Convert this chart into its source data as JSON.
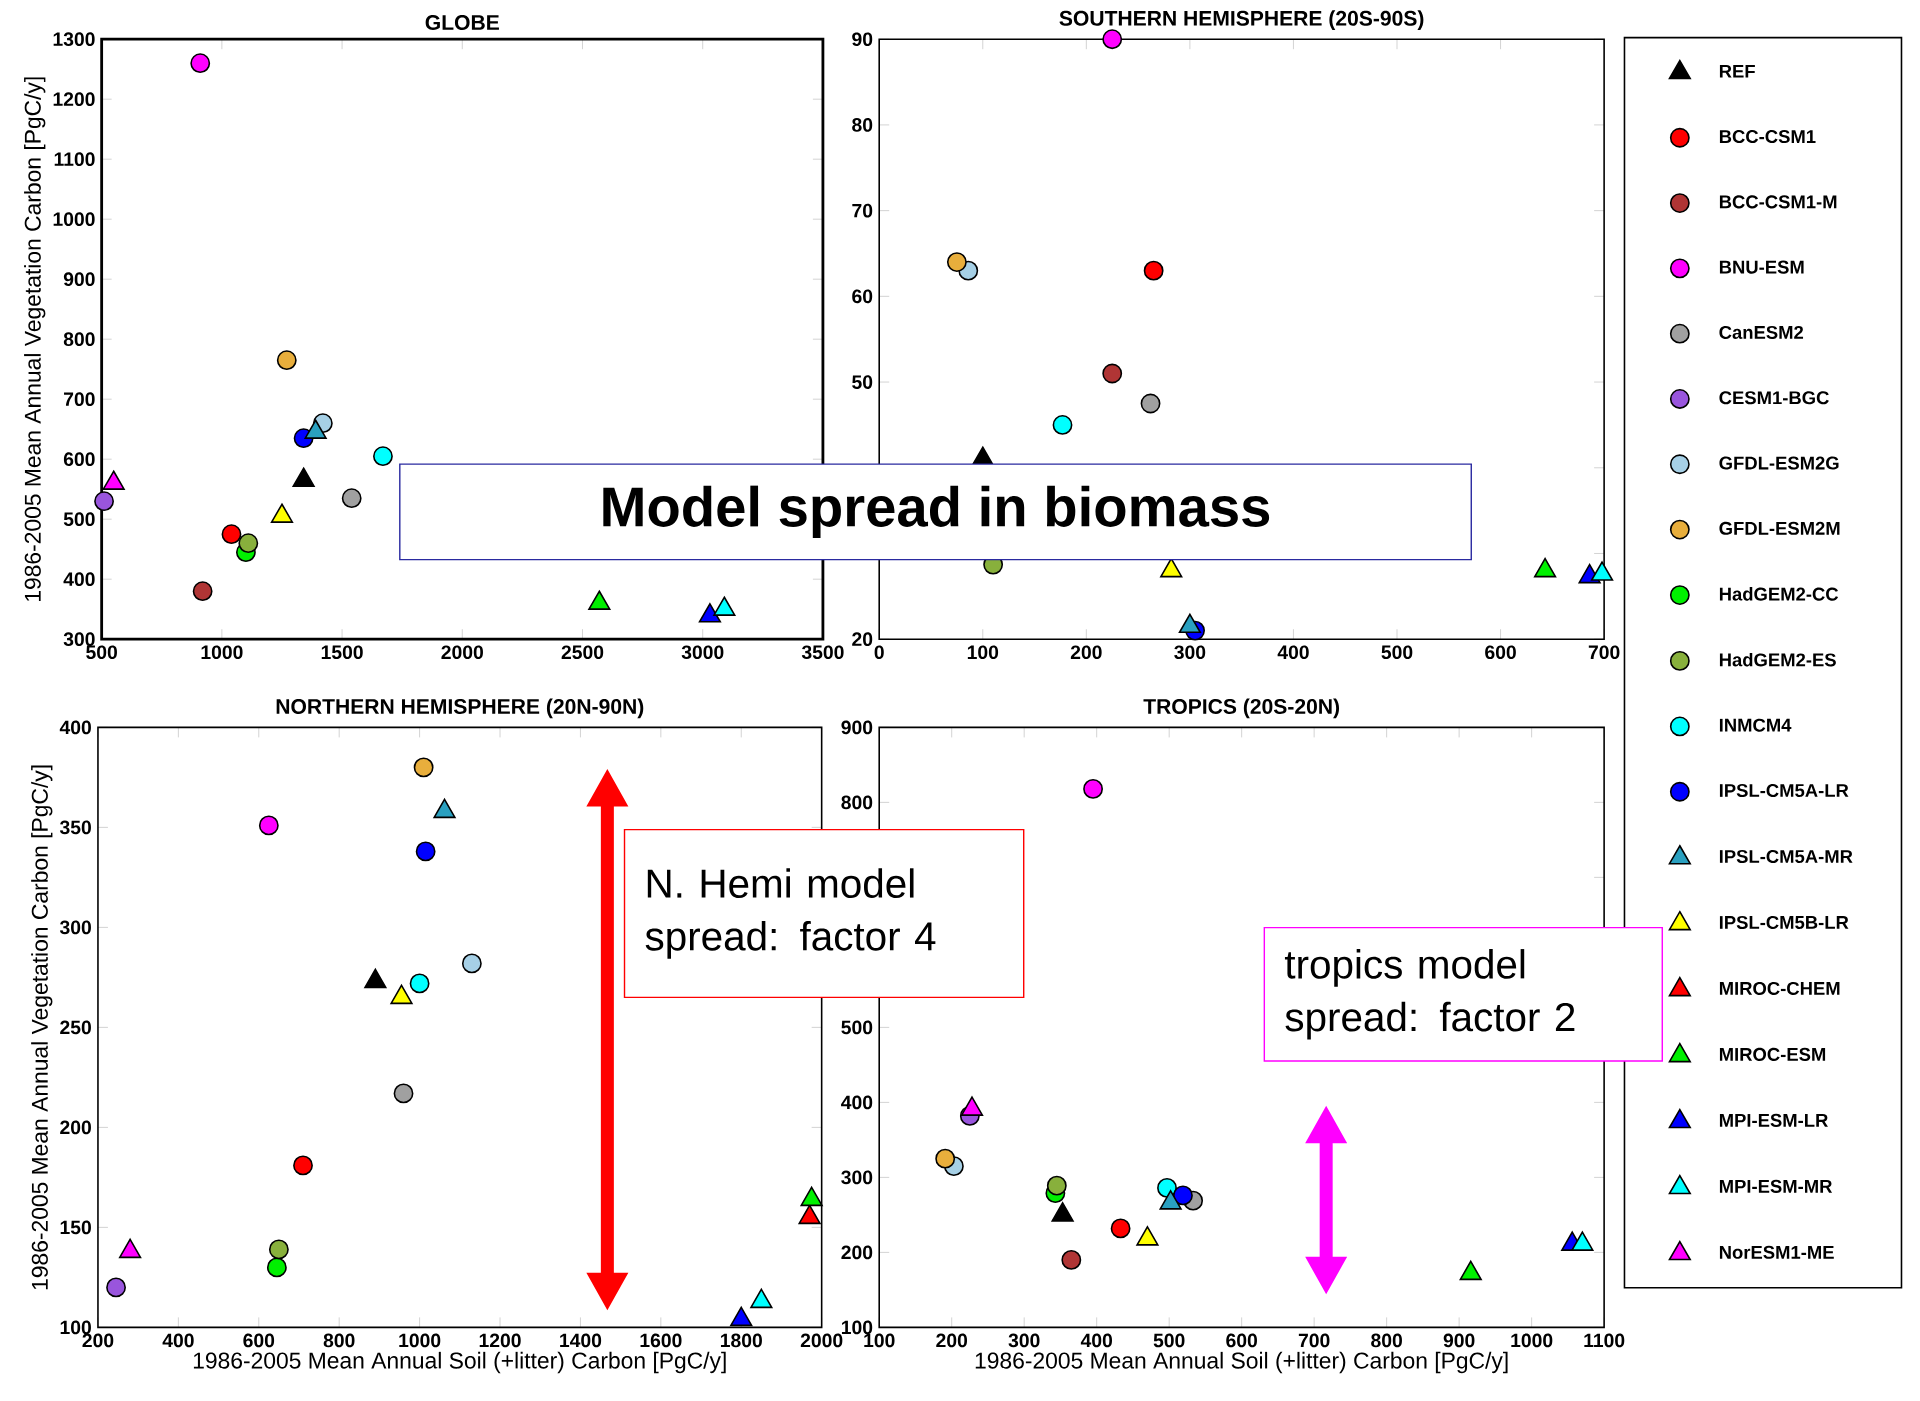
{
  "chart_data": [
    {
      "type": "scatter",
      "title": "GLOBE",
      "ylabel": "1986-2005 Mean Annual Vegetation Carbon [PgC/y]",
      "xlim": [
        500,
        3500
      ],
      "ylim": [
        300,
        1300
      ],
      "xticks": [
        500,
        1000,
        1500,
        2000,
        2500,
        3000,
        3500
      ],
      "yticks": [
        300,
        400,
        500,
        600,
        700,
        800,
        900,
        1000,
        1100,
        1200,
        1300
      ],
      "annotations": [
        "Model spread in biomass"
      ],
      "series": [
        {
          "color": "#000000",
          "marker": "triangle",
          "x": [
            1340
          ],
          "values": [
            565
          ]
        },
        {
          "color": "#ff0000",
          "marker": "circle",
          "x": [
            1040
          ],
          "values": [
            475
          ]
        },
        {
          "color": "#b03535",
          "marker": "circle",
          "x": [
            920
          ],
          "values": [
            380
          ]
        },
        {
          "color": "#ff00ff",
          "marker": "circle",
          "x": [
            910
          ],
          "values": [
            1260
          ]
        },
        {
          "color": "#a0a0a0",
          "marker": "circle",
          "x": [
            1540
          ],
          "values": [
            535
          ]
        },
        {
          "color": "#9955dd",
          "marker": "circle",
          "x": [
            510
          ],
          "values": [
            530
          ]
        },
        {
          "color": "#a6d0e6",
          "marker": "circle",
          "x": [
            1420
          ],
          "values": [
            660
          ]
        },
        {
          "color": "#e8ae3c",
          "marker": "circle",
          "x": [
            1270
          ],
          "values": [
            765
          ]
        },
        {
          "color": "#00f000",
          "marker": "circle",
          "x": [
            1100
          ],
          "values": [
            445
          ]
        },
        {
          "color": "#88b03c",
          "marker": "circle",
          "x": [
            1110
          ],
          "values": [
            460
          ]
        },
        {
          "color": "#00ffff",
          "marker": "circle",
          "x": [
            1670
          ],
          "values": [
            605
          ]
        },
        {
          "color": "#0000ff",
          "marker": "circle",
          "x": [
            1340
          ],
          "values": [
            635
          ]
        },
        {
          "color": "#2aa0c0",
          "marker": "triangle",
          "x": [
            1390
          ],
          "values": [
            645
          ]
        },
        {
          "color": "#ffff00",
          "marker": "triangle",
          "x": [
            1250
          ],
          "values": [
            505
          ]
        },
        {
          "color": "#00f000",
          "marker": "triangle",
          "x": [
            2570
          ],
          "values": [
            360
          ]
        },
        {
          "color": "#0000ff",
          "marker": "triangle",
          "x": [
            3030
          ],
          "values": [
            339
          ]
        },
        {
          "color": "#00ffff",
          "marker": "triangle",
          "x": [
            3090
          ],
          "values": [
            350
          ]
        },
        {
          "color": "#ff00ff",
          "marker": "triangle",
          "x": [
            550
          ],
          "values": [
            560
          ]
        }
      ]
    },
    {
      "type": "scatter",
      "title": "SOUTHERN HEMISPHERE (20S-90S)",
      "xlim": [
        0,
        700
      ],
      "ylim": [
        20,
        90
      ],
      "xticks": [
        0,
        100,
        200,
        300,
        400,
        500,
        600,
        700
      ],
      "yticks": [
        20,
        {
          "value": 30,
          "label": null
        },
        {
          "value": 40,
          "label": null
        },
        50,
        60,
        70,
        80,
        90
      ],
      "legend": "right",
      "series": [
        {
          "name": "REF",
          "color": "#000000",
          "marker": "triangle",
          "x": [
            100
          ],
          "values": [
            41
          ]
        },
        {
          "name": "BCC-CSM1",
          "color": "#ff0000",
          "marker": "circle",
          "x": [
            265
          ],
          "values": [
            63
          ]
        },
        {
          "name": "BCC-CSM1-M",
          "color": "#b03535",
          "marker": "circle",
          "x": [
            225
          ],
          "values": [
            51
          ]
        },
        {
          "name": "BNU-ESM",
          "color": "#ff00ff",
          "marker": "circle",
          "x": [
            225
          ],
          "values": [
            90
          ]
        },
        {
          "name": "CanESM2",
          "color": "#a0a0a0",
          "marker": "circle",
          "x": [
            262
          ],
          "values": [
            47.5
          ]
        },
        {
          "name": "CESM1-BGC",
          "color": "#9955dd",
          "marker": "circle",
          "x": [
            null
          ],
          "values": [
            null
          ]
        },
        {
          "name": "GFDL-ESM2G",
          "color": "#a6d0e6",
          "marker": "circle",
          "x": [
            86
          ],
          "values": [
            63
          ]
        },
        {
          "name": "GFDL-ESM2M",
          "color": "#e8ae3c",
          "marker": "circle",
          "x": [
            75
          ],
          "values": [
            64
          ]
        },
        {
          "name": "HadGEM2-CC",
          "color": "#00f000",
          "marker": "circle",
          "x": [
            null
          ],
          "values": [
            null
          ]
        },
        {
          "name": "HadGEM2-ES",
          "color": "#88b03c",
          "marker": "circle",
          "x": [
            110
          ],
          "values": [
            28.7
          ]
        },
        {
          "name": "INMCM4",
          "color": "#00ffff",
          "marker": "circle",
          "x": [
            177
          ],
          "values": [
            45
          ]
        },
        {
          "name": "IPSL-CM5A-LR",
          "color": "#0000ff",
          "marker": "circle",
          "x": [
            305
          ],
          "values": [
            21
          ]
        },
        {
          "name": "IPSL-CM5A-MR",
          "color": "#2aa0c0",
          "marker": "triangle",
          "x": [
            300
          ],
          "values": [
            21.5
          ]
        },
        {
          "name": "IPSL-CM5B-LR",
          "color": "#ffff00",
          "marker": "triangle",
          "x": [
            282
          ],
          "values": [
            28
          ]
        },
        {
          "name": "MIROC-CHEM",
          "color": "#ff0000",
          "marker": "triangle",
          "x": [
            null
          ],
          "values": [
            null
          ]
        },
        {
          "name": "MIROC-ESM",
          "color": "#00f000",
          "marker": "triangle",
          "x": [
            643
          ],
          "values": [
            28
          ]
        },
        {
          "name": "MPI-ESM-LR",
          "color": "#0000ff",
          "marker": "triangle",
          "x": [
            686
          ],
          "values": [
            27.3
          ]
        },
        {
          "name": "MPI-ESM-MR",
          "color": "#00ffff",
          "marker": "triangle",
          "x": [
            698
          ],
          "values": [
            27.6
          ]
        },
        {
          "name": "NorESM1-ME",
          "color": "#ff00ff",
          "marker": "triangle",
          "x": [
            null
          ],
          "values": [
            null
          ]
        }
      ]
    },
    {
      "type": "scatter",
      "title": "NORTHERN HEMISPHERE (20N-90N)",
      "xlabel": "1986-2005 Mean Annual Soil (+litter) Carbon [PgC/y]",
      "ylabel": "1986-2005 Mean Annual Vegetation Carbon [PgC/y]",
      "xlim": [
        200,
        2000
      ],
      "ylim": [
        100,
        400
      ],
      "xticks": [
        200,
        400,
        600,
        800,
        1000,
        1200,
        1400,
        1600,
        1800,
        2000
      ],
      "yticks": [
        100,
        150,
        200,
        250,
        300,
        350,
        400
      ],
      "annotations": [
        "N. Hemi model spread: factor 4"
      ],
      "series": [
        {
          "color": "#000000",
          "marker": "triangle",
          "x": [
            890
          ],
          "values": [
            273
          ]
        },
        {
          "color": "#ff0000",
          "marker": "circle",
          "x": [
            710
          ],
          "values": [
            181
          ]
        },
        {
          "color": "#ff00ff",
          "marker": "circle",
          "x": [
            625
          ],
          "values": [
            351
          ]
        },
        {
          "color": "#a0a0a0",
          "marker": "circle",
          "x": [
            960
          ],
          "values": [
            217
          ]
        },
        {
          "color": "#9955dd",
          "marker": "circle",
          "x": [
            245
          ],
          "values": [
            120
          ]
        },
        {
          "color": "#a6d0e6",
          "marker": "circle",
          "x": [
            1130
          ],
          "values": [
            282
          ]
        },
        {
          "color": "#e8ae3c",
          "marker": "circle",
          "x": [
            1010
          ],
          "values": [
            380
          ]
        },
        {
          "color": "#00f000",
          "marker": "circle",
          "x": [
            645
          ],
          "values": [
            130
          ]
        },
        {
          "color": "#88b03c",
          "marker": "circle",
          "x": [
            650
          ],
          "values": [
            139
          ]
        },
        {
          "color": "#00ffff",
          "marker": "circle",
          "x": [
            1000
          ],
          "values": [
            272
          ]
        },
        {
          "color": "#0000ff",
          "marker": "circle",
          "x": [
            1015
          ],
          "values": [
            338
          ]
        },
        {
          "color": "#2aa0c0",
          "marker": "triangle",
          "x": [
            1062
          ],
          "values": [
            358
          ]
        },
        {
          "color": "#ffff00",
          "marker": "triangle",
          "x": [
            955
          ],
          "values": [
            265
          ]
        },
        {
          "color": "#ff0000",
          "marker": "triangle",
          "x": [
            1970
          ],
          "values": [
            155
          ]
        },
        {
          "color": "#00f000",
          "marker": "triangle",
          "x": [
            1975
          ],
          "values": [
            164
          ]
        },
        {
          "color": "#0000ff",
          "marker": "triangle",
          "x": [
            1800
          ],
          "values": [
            104
          ]
        },
        {
          "color": "#00ffff",
          "marker": "triangle",
          "x": [
            1850
          ],
          "values": [
            113
          ]
        },
        {
          "color": "#ff00ff",
          "marker": "triangle",
          "x": [
            280
          ],
          "values": [
            138
          ]
        }
      ]
    },
    {
      "type": "scatter",
      "title": "TROPICS (20S-20N)",
      "xlabel": "1986-2005 Mean Annual Soil (+litter) Carbon [PgC/y]",
      "xlim": [
        100,
        1100
      ],
      "ylim": [
        100,
        900
      ],
      "xticks": [
        100,
        200,
        300,
        400,
        500,
        600,
        700,
        800,
        900,
        1000,
        1100
      ],
      "yticks": [
        100,
        200,
        300,
        400,
        500,
        {
          "value": 600,
          "label": null
        },
        {
          "value": 700,
          "label": null
        },
        800,
        900
      ],
      "annotations": [
        "tropics model spread: factor 2"
      ],
      "series": [
        {
          "color": "#000000",
          "marker": "triangle",
          "x": [
            353
          ],
          "values": [
            250
          ]
        },
        {
          "color": "#ff0000",
          "marker": "circle",
          "x": [
            433
          ],
          "values": [
            232
          ]
        },
        {
          "color": "#b03535",
          "marker": "circle",
          "x": [
            365
          ],
          "values": [
            190
          ]
        },
        {
          "color": "#ff00ff",
          "marker": "circle",
          "x": [
            395
          ],
          "values": [
            818
          ]
        },
        {
          "color": "#a0a0a0",
          "marker": "circle",
          "x": [
            533
          ],
          "values": [
            269
          ]
        },
        {
          "color": "#9955dd",
          "marker": "circle",
          "x": [
            225
          ],
          "values": [
            382
          ]
        },
        {
          "color": "#a6d0e6",
          "marker": "circle",
          "x": [
            203
          ],
          "values": [
            315
          ]
        },
        {
          "color": "#e8ae3c",
          "marker": "circle",
          "x": [
            191
          ],
          "values": [
            325
          ]
        },
        {
          "color": "#00f000",
          "marker": "circle",
          "x": [
            343
          ],
          "values": [
            279
          ]
        },
        {
          "color": "#88b03c",
          "marker": "circle",
          "x": [
            345
          ],
          "values": [
            289
          ]
        },
        {
          "color": "#00ffff",
          "marker": "circle",
          "x": [
            497
          ],
          "values": [
            286
          ]
        },
        {
          "color": "#0000ff",
          "marker": "circle",
          "x": [
            519
          ],
          "values": [
            276
          ]
        },
        {
          "color": "#2aa0c0",
          "marker": "triangle",
          "x": [
            502
          ],
          "values": [
            266
          ]
        },
        {
          "color": "#ffff00",
          "marker": "triangle",
          "x": [
            470
          ],
          "values": [
            218
          ]
        },
        {
          "color": "#00f000",
          "marker": "triangle",
          "x": [
            916
          ],
          "values": [
            172
          ]
        },
        {
          "color": "#0000ff",
          "marker": "triangle",
          "x": [
            1056
          ],
          "values": [
            211
          ]
        },
        {
          "color": "#00ffff",
          "marker": "triangle",
          "x": [
            1070
          ],
          "values": [
            211
          ]
        },
        {
          "color": "#ff00ff",
          "marker": "triangle",
          "x": [
            228
          ],
          "values": [
            391
          ]
        }
      ]
    }
  ]
}
